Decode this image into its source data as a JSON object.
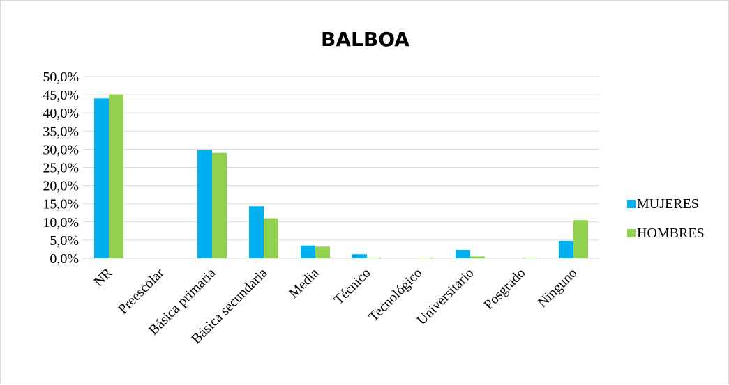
{
  "chart_data": {
    "type": "bar",
    "title": "BALBOA",
    "categories": [
      "NR",
      "Preescolar",
      "Básica primaria",
      "Básica secundaria",
      "Media",
      "Técnico",
      "Tecnológico",
      "Universitario",
      "Posgrado",
      "Ninguno"
    ],
    "series": [
      {
        "name": "MUJERES",
        "color": "#00b0f0",
        "values": [
          44.0,
          0.0,
          29.7,
          14.3,
          3.5,
          1.1,
          0.0,
          2.3,
          0.0,
          4.8
        ]
      },
      {
        "name": "HOMBRES",
        "color": "#92d050",
        "values": [
          45.1,
          0.0,
          29.0,
          11.0,
          3.2,
          0.2,
          0.2,
          0.5,
          0.2,
          10.5
        ]
      }
    ],
    "y_ticks": [
      "0,0%",
      "5,0%",
      "10,0%",
      "15,0%",
      "20,0%",
      "25,0%",
      "30,0%",
      "35,0%",
      "40,0%",
      "45,0%",
      "50,0%"
    ],
    "ylim": [
      0,
      50
    ],
    "grid": true,
    "legend_position": "right",
    "gridline_color": "#d9d9d9"
  }
}
